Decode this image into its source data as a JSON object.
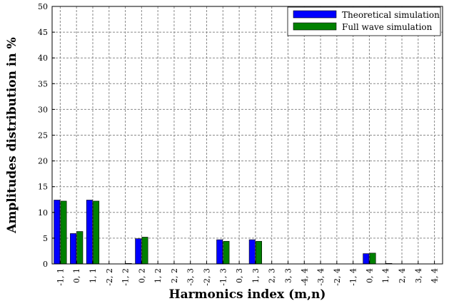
{
  "chart_data": {
    "type": "bar",
    "title": "",
    "xlabel": "Harmonics index (m,n)",
    "ylabel": "Amplitudes distribution in %",
    "ylim": [
      0,
      50
    ],
    "yticks": [
      0,
      5,
      10,
      15,
      20,
      25,
      30,
      35,
      40,
      45,
      50
    ],
    "grid": true,
    "legend_position": "top-right",
    "categories": [
      "-1, 1",
      "0, 1",
      "1, 1",
      "-2, 2",
      "-1, 2",
      "0, 2",
      "1, 2",
      "2, 2",
      "-3, 3",
      "-2, 3",
      "-1, 3",
      "0, 3",
      "1, 3",
      "2, 3",
      "3, 3",
      "-4, 4",
      "-3, 4",
      "-2, 4",
      "-1, 4",
      "0, 4",
      "1, 4",
      "2, 4",
      "3, 4",
      "4, 4"
    ],
    "series": [
      {
        "name": "Theoretical simulation",
        "color": "#0000ff",
        "values": [
          12.4,
          5.9,
          12.4,
          0,
          0,
          4.9,
          0,
          0,
          0,
          0,
          4.7,
          0,
          4.7,
          0,
          0,
          0,
          0,
          0,
          0,
          2.0,
          0,
          0,
          0,
          0
        ]
      },
      {
        "name": "Full wave simulation",
        "color": "#008000",
        "values": [
          12.2,
          6.3,
          12.2,
          0,
          0.1,
          5.2,
          0,
          0,
          0,
          0,
          4.4,
          0,
          4.4,
          0,
          0,
          0,
          0,
          0,
          0,
          2.1,
          0.1,
          0,
          0,
          0
        ]
      }
    ]
  }
}
